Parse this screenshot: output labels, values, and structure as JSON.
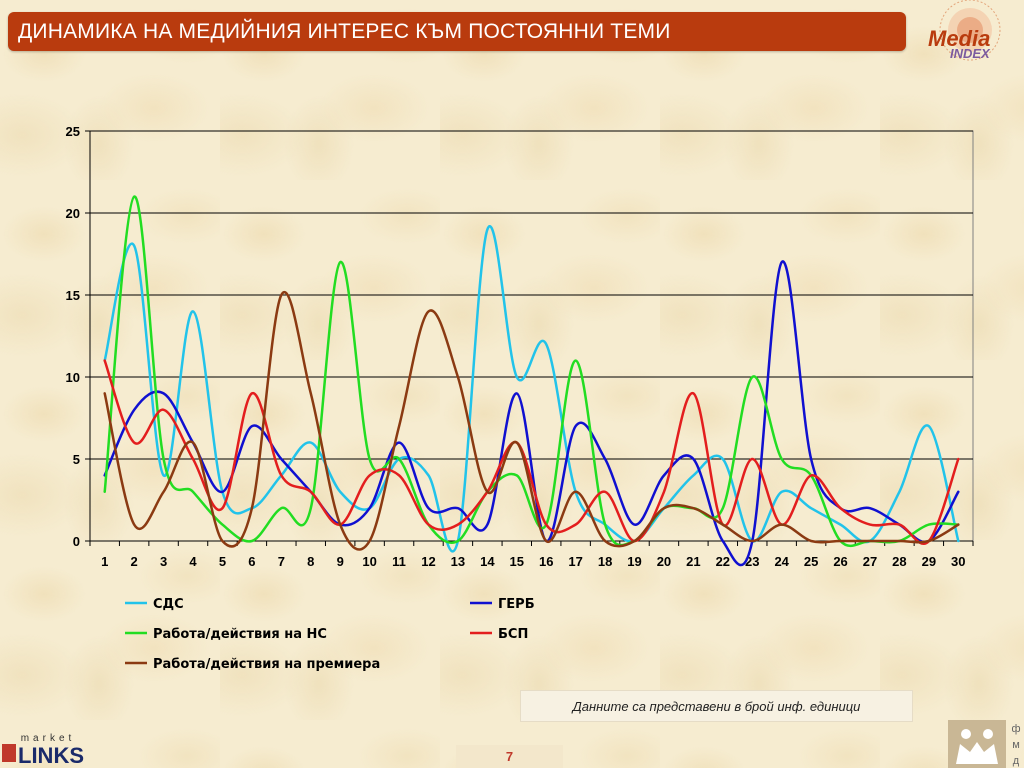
{
  "header": {
    "title": "ДИНАМИКА НА МЕДИЙНИЯ ИНТЕРЕС КЪМ ПОСТОЯННИ ТЕМИ"
  },
  "logos": {
    "media_index": "Media INDEX",
    "market_links": "market LINKS",
    "fmd": "ФМД"
  },
  "note": "Данните са представени в брой инф. единици",
  "page_number": "7",
  "chart_data": {
    "type": "line",
    "title": "",
    "xlabel": "",
    "ylabel": "",
    "ylim": [
      0,
      25
    ],
    "yticks": [
      0,
      5,
      10,
      15,
      20,
      25
    ],
    "grid": true,
    "legend_position": "bottom",
    "categories": [
      "1",
      "2",
      "3",
      "4",
      "5",
      "6",
      "7",
      "8",
      "9",
      "10",
      "11",
      "12",
      "13",
      "14",
      "15",
      "16",
      "17",
      "18",
      "19",
      "20",
      "21",
      "22",
      "23",
      "24",
      "25",
      "26",
      "27",
      "28",
      "29",
      "30"
    ],
    "series": [
      {
        "name": "СДС",
        "color": "#22c3ea",
        "values": [
          11,
          18,
          4,
          14,
          3,
          2,
          4,
          6,
          3,
          2,
          5,
          4,
          0,
          19,
          10,
          12,
          3,
          1,
          0,
          2,
          4,
          5,
          0,
          3,
          2,
          1,
          0,
          3,
          7,
          0
        ]
      },
      {
        "name": "ГЕРБ",
        "color": "#1010d0",
        "values": [
          4,
          8,
          9,
          6,
          3,
          7,
          5,
          3,
          1,
          2,
          6,
          2,
          2,
          1,
          9,
          0,
          7,
          5,
          1,
          4,
          5,
          0,
          0,
          17,
          5,
          2,
          2,
          1,
          0,
          3
        ]
      },
      {
        "name": "Работа/действия на НС",
        "color": "#22dd22",
        "values": [
          3,
          21,
          5,
          3,
          1,
          0,
          2,
          2,
          17,
          5,
          5,
          1,
          0,
          3,
          4,
          1,
          11,
          1,
          0,
          2,
          2,
          2,
          10,
          5,
          4,
          0,
          0,
          0,
          1,
          1
        ]
      },
      {
        "name": "БСП",
        "color": "#e31e1e",
        "values": [
          11,
          6,
          8,
          5,
          2,
          9,
          4,
          3,
          1,
          4,
          4,
          1,
          1,
          3,
          6,
          1,
          1,
          3,
          0,
          3,
          9,
          1,
          5,
          1,
          4,
          2,
          1,
          1,
          0,
          5
        ]
      },
      {
        "name": "Работа/действия на премиера",
        "color": "#8b3a12",
        "values": [
          9,
          1,
          3,
          6,
          0,
          2,
          15,
          9,
          1,
          0,
          7,
          14,
          10,
          3,
          6,
          0,
          3,
          0,
          0,
          2,
          2,
          1,
          0,
          1,
          0,
          0,
          0,
          0,
          0,
          1
        ]
      }
    ]
  }
}
